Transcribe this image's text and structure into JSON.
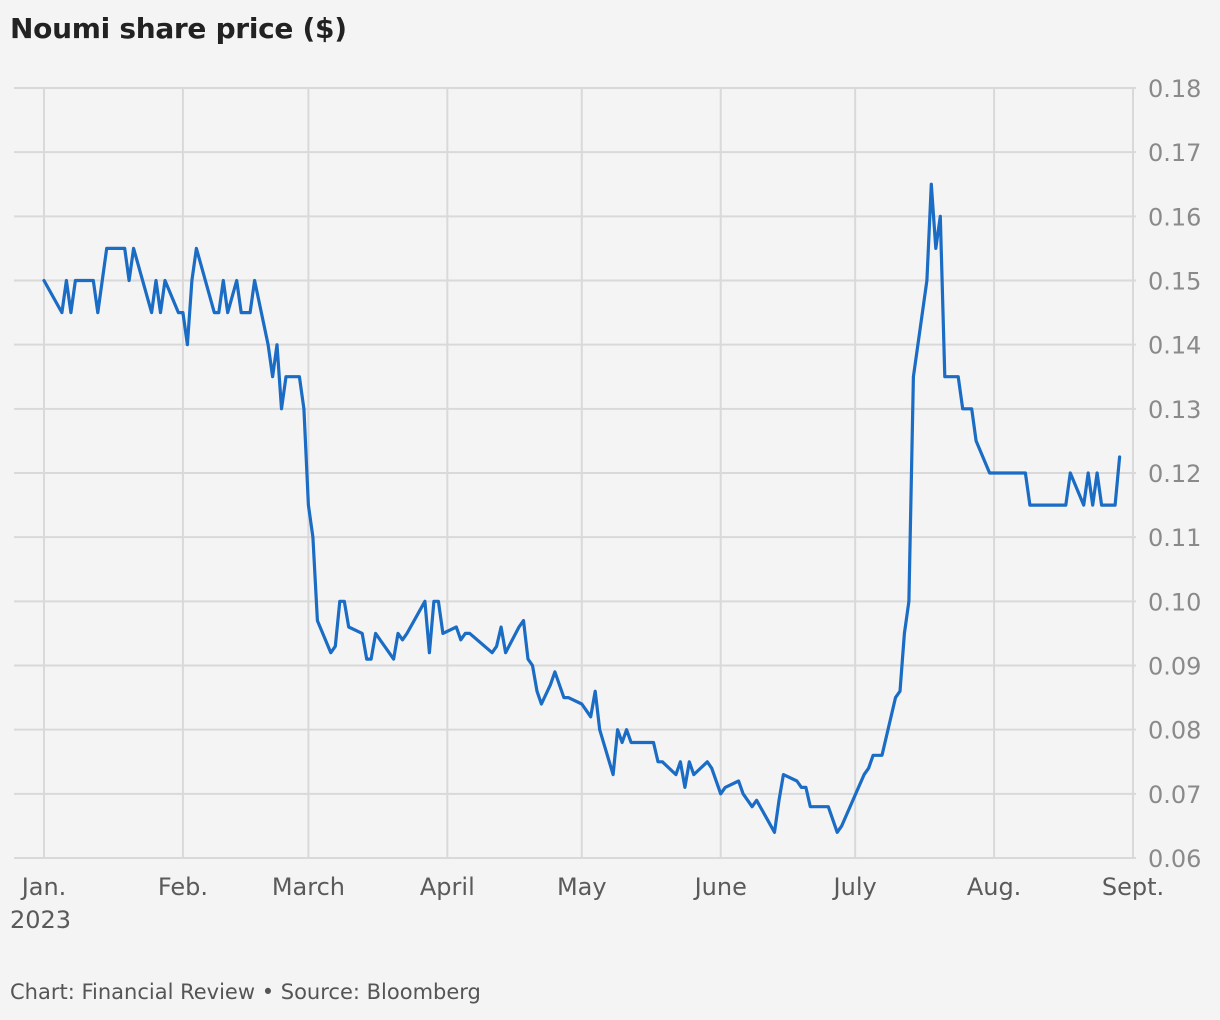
{
  "chart_data": {
    "type": "line",
    "title": "Noumi share price ($)",
    "xlabel": "",
    "ylabel": "",
    "ylim": [
      0.06,
      0.18
    ],
    "yticks": [
      "0.18",
      "0.17",
      "0.16",
      "0.15",
      "0.14",
      "0.13",
      "0.12",
      "0.11",
      "0.10",
      "0.09",
      "0.08",
      "0.07",
      "0.06"
    ],
    "xticks": [
      {
        "label": "Jan.",
        "sub": "2023",
        "date": "2023-01-01"
      },
      {
        "label": "Feb.",
        "sub": "",
        "date": "2023-02-01"
      },
      {
        "label": "March",
        "sub": "",
        "date": "2023-03-01"
      },
      {
        "label": "April",
        "sub": "",
        "date": "2023-04-01"
      },
      {
        "label": "May",
        "sub": "",
        "date": "2023-05-01"
      },
      {
        "label": "June",
        "sub": "",
        "date": "2023-06-01"
      },
      {
        "label": "July",
        "sub": "",
        "date": "2023-07-01"
      },
      {
        "label": "Aug.",
        "sub": "",
        "date": "2023-08-01"
      },
      {
        "label": "Sept.",
        "sub": "",
        "date": "2023-09-01"
      }
    ],
    "grid": true,
    "line_color": "#1a6cc4",
    "series": [
      {
        "name": "",
        "points": [
          [
            "2023-01-01",
            0.15
          ],
          [
            "2023-01-05",
            0.145
          ],
          [
            "2023-01-06",
            0.15
          ],
          [
            "2023-01-07",
            0.145
          ],
          [
            "2023-01-08",
            0.15
          ],
          [
            "2023-01-12",
            0.15
          ],
          [
            "2023-01-13",
            0.145
          ],
          [
            "2023-01-15",
            0.155
          ],
          [
            "2023-01-19",
            0.155
          ],
          [
            "2023-01-20",
            0.15
          ],
          [
            "2023-01-21",
            0.155
          ],
          [
            "2023-01-25",
            0.145
          ],
          [
            "2023-01-26",
            0.15
          ],
          [
            "2023-01-27",
            0.145
          ],
          [
            "2023-01-28",
            0.15
          ],
          [
            "2023-01-31",
            0.145
          ],
          [
            "2023-02-01",
            0.145
          ],
          [
            "2023-02-02",
            0.14
          ],
          [
            "2023-02-03",
            0.15
          ],
          [
            "2023-02-04",
            0.155
          ],
          [
            "2023-02-08",
            0.145
          ],
          [
            "2023-02-09",
            0.145
          ],
          [
            "2023-02-10",
            0.15
          ],
          [
            "2023-02-11",
            0.145
          ],
          [
            "2023-02-13",
            0.15
          ],
          [
            "2023-02-14",
            0.145
          ],
          [
            "2023-02-16",
            0.145
          ],
          [
            "2023-02-17",
            0.15
          ],
          [
            "2023-02-20",
            0.14
          ],
          [
            "2023-02-21",
            0.135
          ],
          [
            "2023-02-22",
            0.14
          ],
          [
            "2023-02-23",
            0.13
          ],
          [
            "2023-02-24",
            0.135
          ],
          [
            "2023-02-27",
            0.135
          ],
          [
            "2023-02-28",
            0.13
          ],
          [
            "2023-03-01",
            0.115
          ],
          [
            "2023-03-02",
            0.11
          ],
          [
            "2023-03-03",
            0.097
          ],
          [
            "2023-03-06",
            0.092
          ],
          [
            "2023-03-07",
            0.093
          ],
          [
            "2023-03-08",
            0.1
          ],
          [
            "2023-03-09",
            0.1
          ],
          [
            "2023-03-10",
            0.096
          ],
          [
            "2023-03-13",
            0.095
          ],
          [
            "2023-03-14",
            0.091
          ],
          [
            "2023-03-15",
            0.091
          ],
          [
            "2023-03-16",
            0.095
          ],
          [
            "2023-03-20",
            0.091
          ],
          [
            "2023-03-21",
            0.095
          ],
          [
            "2023-03-22",
            0.094
          ],
          [
            "2023-03-23",
            0.095
          ],
          [
            "2023-03-27",
            0.1
          ],
          [
            "2023-03-28",
            0.092
          ],
          [
            "2023-03-29",
            0.1
          ],
          [
            "2023-03-30",
            0.1
          ],
          [
            "2023-03-31",
            0.095
          ],
          [
            "2023-04-03",
            0.096
          ],
          [
            "2023-04-04",
            0.094
          ],
          [
            "2023-04-05",
            0.095
          ],
          [
            "2023-04-06",
            0.095
          ],
          [
            "2023-04-11",
            0.092
          ],
          [
            "2023-04-12",
            0.093
          ],
          [
            "2023-04-13",
            0.096
          ],
          [
            "2023-04-14",
            0.092
          ],
          [
            "2023-04-17",
            0.096
          ],
          [
            "2023-04-18",
            0.097
          ],
          [
            "2023-04-19",
            0.091
          ],
          [
            "2023-04-20",
            0.09
          ],
          [
            "2023-04-21",
            0.086
          ],
          [
            "2023-04-22",
            0.084
          ],
          [
            "2023-04-24",
            0.087
          ],
          [
            "2023-04-25",
            0.089
          ],
          [
            "2023-04-27",
            0.085
          ],
          [
            "2023-04-28",
            0.085
          ],
          [
            "2023-05-01",
            0.084
          ],
          [
            "2023-05-02",
            0.083
          ],
          [
            "2023-05-03",
            0.082
          ],
          [
            "2023-05-04",
            0.086
          ],
          [
            "2023-05-05",
            0.08
          ],
          [
            "2023-05-08",
            0.073
          ],
          [
            "2023-05-09",
            0.08
          ],
          [
            "2023-05-10",
            0.078
          ],
          [
            "2023-05-11",
            0.08
          ],
          [
            "2023-05-12",
            0.078
          ],
          [
            "2023-05-17",
            0.078
          ],
          [
            "2023-05-18",
            0.075
          ],
          [
            "2023-05-19",
            0.075
          ],
          [
            "2023-05-22",
            0.073
          ],
          [
            "2023-05-23",
            0.075
          ],
          [
            "2023-05-24",
            0.071
          ],
          [
            "2023-05-25",
            0.075
          ],
          [
            "2023-05-26",
            0.073
          ],
          [
            "2023-05-29",
            0.075
          ],
          [
            "2023-05-30",
            0.074
          ],
          [
            "2023-06-01",
            0.07
          ],
          [
            "2023-06-02",
            0.071
          ],
          [
            "2023-06-05",
            0.072
          ],
          [
            "2023-06-06",
            0.07
          ],
          [
            "2023-06-08",
            0.068
          ],
          [
            "2023-06-09",
            0.069
          ],
          [
            "2023-06-13",
            0.064
          ],
          [
            "2023-06-14",
            0.069
          ],
          [
            "2023-06-15",
            0.073
          ],
          [
            "2023-06-18",
            0.072
          ],
          [
            "2023-06-19",
            0.071
          ],
          [
            "2023-06-20",
            0.071
          ],
          [
            "2023-06-21",
            0.068
          ],
          [
            "2023-06-25",
            0.068
          ],
          [
            "2023-06-27",
            0.064
          ],
          [
            "2023-06-28",
            0.065
          ],
          [
            "2023-07-03",
            0.073
          ],
          [
            "2023-07-04",
            0.074
          ],
          [
            "2023-07-05",
            0.076
          ],
          [
            "2023-07-07",
            0.076
          ],
          [
            "2023-07-10",
            0.085
          ],
          [
            "2023-07-11",
            0.086
          ],
          [
            "2023-07-12",
            0.095
          ],
          [
            "2023-07-13",
            0.1
          ],
          [
            "2023-07-14",
            0.135
          ],
          [
            "2023-07-17",
            0.15
          ],
          [
            "2023-07-18",
            0.165
          ],
          [
            "2023-07-19",
            0.155
          ],
          [
            "2023-07-20",
            0.16
          ],
          [
            "2023-07-21",
            0.135
          ],
          [
            "2023-07-24",
            0.135
          ],
          [
            "2023-07-25",
            0.13
          ],
          [
            "2023-07-27",
            0.13
          ],
          [
            "2023-07-28",
            0.125
          ],
          [
            "2023-07-31",
            0.12
          ],
          [
            "2023-08-08",
            0.12
          ],
          [
            "2023-08-09",
            0.115
          ],
          [
            "2023-08-17",
            0.115
          ],
          [
            "2023-08-18",
            0.12
          ],
          [
            "2023-08-21",
            0.115
          ],
          [
            "2023-08-22",
            0.12
          ],
          [
            "2023-08-23",
            0.115
          ],
          [
            "2023-08-24",
            0.12
          ],
          [
            "2023-08-25",
            0.115
          ],
          [
            "2023-08-28",
            0.115
          ],
          [
            "2023-08-29",
            0.1225
          ]
        ]
      }
    ]
  },
  "footer": {
    "text": "Chart: Financial Review • Source: Bloomberg"
  }
}
